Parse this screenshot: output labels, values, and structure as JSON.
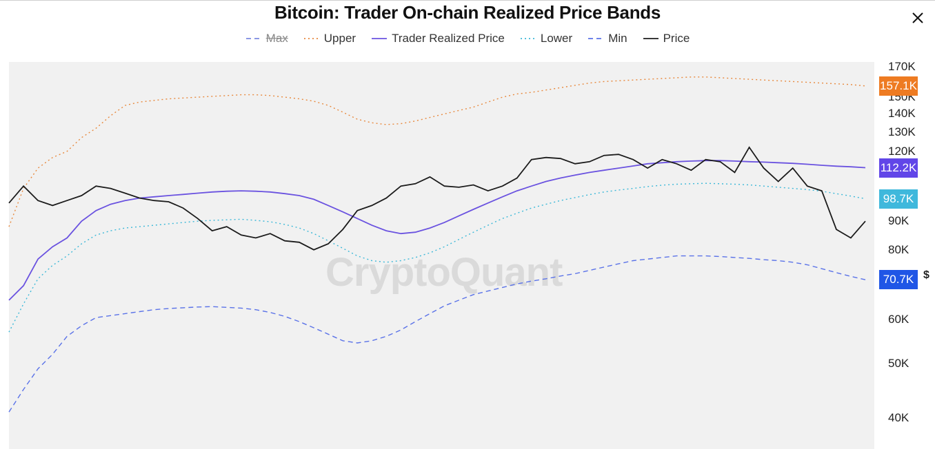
{
  "chart_data": {
    "type": "line",
    "title": "Bitcoin: Trader On-chain Realized Price Bands",
    "yscale": "log",
    "ylim": [
      35000,
      175000
    ],
    "yticks": [
      {
        "label": "170K",
        "value": 170000
      },
      {
        "label": "150K",
        "value": 150000
      },
      {
        "label": "140K",
        "value": 140000
      },
      {
        "label": "130K",
        "value": 130000
      },
      {
        "label": "120K",
        "value": 120000
      },
      {
        "label": "90K",
        "value": 90000
      },
      {
        "label": "80K",
        "value": 80000
      },
      {
        "label": "60K",
        "value": 60000
      },
      {
        "label": "50K",
        "value": 50000
      },
      {
        "label": "40K",
        "value": 40000
      }
    ],
    "x_points": 60,
    "series": [
      {
        "name": "Max",
        "color": "#e8883c",
        "dash": "dash",
        "hidden": true,
        "values": []
      },
      {
        "name": "Upper",
        "color": "#e8883c",
        "dash": "dot",
        "values": [
          88000,
          103000,
          112000,
          117000,
          120000,
          127000,
          132000,
          139000,
          145000,
          147000,
          148000,
          149000,
          149500,
          150000,
          150500,
          151000,
          151500,
          151500,
          151000,
          150000,
          149000,
          147500,
          145000,
          141000,
          137000,
          135000,
          134000,
          134500,
          136000,
          138000,
          140000,
          142000,
          144000,
          147000,
          150000,
          152000,
          153000,
          154500,
          156000,
          157500,
          159000,
          160000,
          160500,
          161000,
          161500,
          162000,
          162500,
          163000,
          163000,
          162500,
          162000,
          161500,
          161000,
          160500,
          160000,
          159500,
          159000,
          158500,
          158000,
          157100
        ]
      },
      {
        "name": "Trader Realized Price",
        "color": "#6a52e0",
        "dash": "solid",
        "values": [
          65000,
          69000,
          77000,
          81000,
          84000,
          90000,
          94000,
          96500,
          98000,
          99000,
          99500,
          100000,
          100500,
          101000,
          101500,
          101800,
          102000,
          101800,
          101500,
          100800,
          100000,
          98500,
          96000,
          93500,
          91000,
          88500,
          86500,
          85500,
          86000,
          87500,
          89500,
          92000,
          94500,
          97000,
          99500,
          102000,
          104000,
          106000,
          107500,
          108800,
          110000,
          111000,
          112000,
          113000,
          114000,
          114500,
          115000,
          115300,
          115500,
          115500,
          115300,
          115000,
          114800,
          114500,
          114200,
          113800,
          113300,
          112900,
          112600,
          112200
        ]
      },
      {
        "name": "Lower",
        "color": "#3bb8d8",
        "dash": "dot",
        "values": [
          57000,
          64000,
          71000,
          75000,
          78000,
          82000,
          85000,
          86500,
          87500,
          88000,
          88500,
          89000,
          89500,
          90000,
          90300,
          90500,
          90700,
          90300,
          89800,
          88800,
          87500,
          85500,
          83000,
          80500,
          78000,
          76500,
          76000,
          76500,
          77500,
          79000,
          81000,
          83500,
          86000,
          88500,
          91000,
          93000,
          95000,
          96500,
          98000,
          99200,
          100400,
          101500,
          102300,
          103000,
          103800,
          104400,
          104800,
          105000,
          105200,
          105000,
          104800,
          104500,
          104000,
          103500,
          103000,
          102500,
          101800,
          100800,
          99800,
          98700
        ]
      },
      {
        "name": "Min",
        "color": "#5a72e8",
        "dash": "dash",
        "values": [
          41000,
          45000,
          49000,
          52000,
          56000,
          58500,
          60500,
          61000,
          61500,
          62000,
          62500,
          62800,
          63000,
          63200,
          63300,
          63100,
          62900,
          62500,
          61800,
          60800,
          59500,
          58000,
          56500,
          55000,
          54500,
          55000,
          56000,
          57500,
          59500,
          61500,
          63500,
          65000,
          66500,
          67500,
          68500,
          69500,
          70300,
          71000,
          71800,
          72500,
          73500,
          74500,
          75500,
          76500,
          77000,
          77500,
          78000,
          78000,
          78000,
          77800,
          77500,
          77200,
          76800,
          76500,
          76000,
          75200,
          74000,
          72800,
          71700,
          70700
        ]
      },
      {
        "name": "Price",
        "color": "#1b1b1b",
        "dash": "solid",
        "values": [
          97000,
          104000,
          98000,
          96000,
          98000,
          100000,
          104000,
          103000,
          101000,
          99000,
          98000,
          97500,
          95000,
          91000,
          86500,
          88000,
          85000,
          84000,
          85500,
          83000,
          82500,
          80000,
          82000,
          87000,
          94000,
          96000,
          99000,
          104000,
          105000,
          108000,
          104000,
          103500,
          104500,
          102000,
          104000,
          107500,
          116000,
          117000,
          116500,
          114000,
          115000,
          118000,
          118500,
          116000,
          112000,
          116000,
          114000,
          111000,
          116000,
          115000,
          110000,
          122000,
          112000,
          106000,
          112000,
          104000,
          102000,
          87000,
          84000,
          90000
        ]
      }
    ],
    "current_values": [
      {
        "series": "Upper",
        "label": "157.1K",
        "color": "#ee7b22",
        "value": 157100
      },
      {
        "series": "Trader Realized Price",
        "label": "112.2K",
        "color": "#6146e8",
        "value": 112200
      },
      {
        "series": "Lower",
        "label": "98.7K",
        "color": "#3fb8dc",
        "value": 98700
      },
      {
        "series": "Min",
        "label": "70.7K",
        "color": "#2056e6",
        "value": 70700
      }
    ],
    "legend_position": "top-center",
    "grid": false
  },
  "watermark": "CryptoQuant",
  "currency_label": "$",
  "icons": {
    "close": "close-icon"
  }
}
